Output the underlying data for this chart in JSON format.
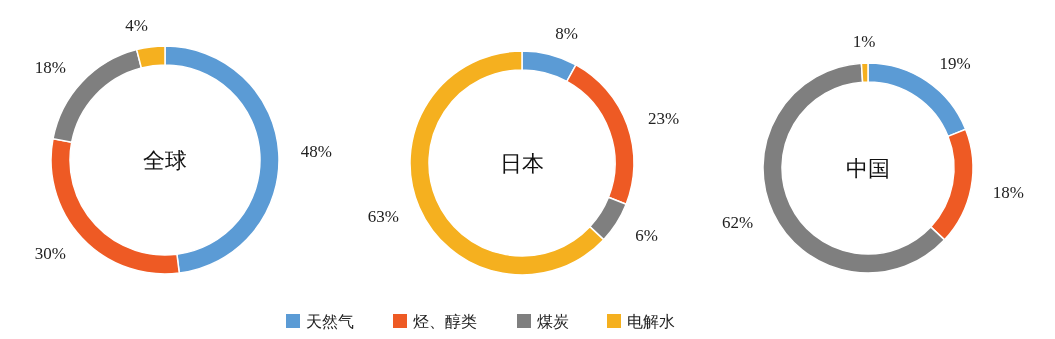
{
  "chart_data": [
    {
      "type": "donut",
      "title": "全球",
      "categories": [
        "天然气",
        "烃、醇类",
        "煤炭",
        "电解水"
      ],
      "values": [
        48,
        30,
        18,
        4
      ],
      "colors": [
        "#5b9bd5",
        "#ee5a24",
        "#7f7f7f",
        "#f5b01f"
      ],
      "value_labels": [
        "48%",
        "30%",
        "18%",
        "4%"
      ],
      "legend": "bottom"
    },
    {
      "type": "donut",
      "title": "日本",
      "categories": [
        null,
        null,
        null,
        null
      ],
      "values": [
        8,
        23,
        6,
        63
      ],
      "colors": [
        "#5b9bd5",
        "#ee5a24",
        "#7f7f7f",
        "#f5b01f"
      ],
      "value_labels": [
        "8%",
        "23%",
        "6%",
        "63%"
      ]
    },
    {
      "type": "donut",
      "title": "中国",
      "categories": [
        null,
        null,
        null,
        null
      ],
      "values": [
        19,
        18,
        62,
        1
      ],
      "colors": [
        "#5b9bd5",
        "#ee5a24",
        "#7f7f7f",
        "#f5b01f"
      ],
      "value_labels": [
        "19%",
        "18%",
        "62%",
        "1%"
      ]
    }
  ]
}
